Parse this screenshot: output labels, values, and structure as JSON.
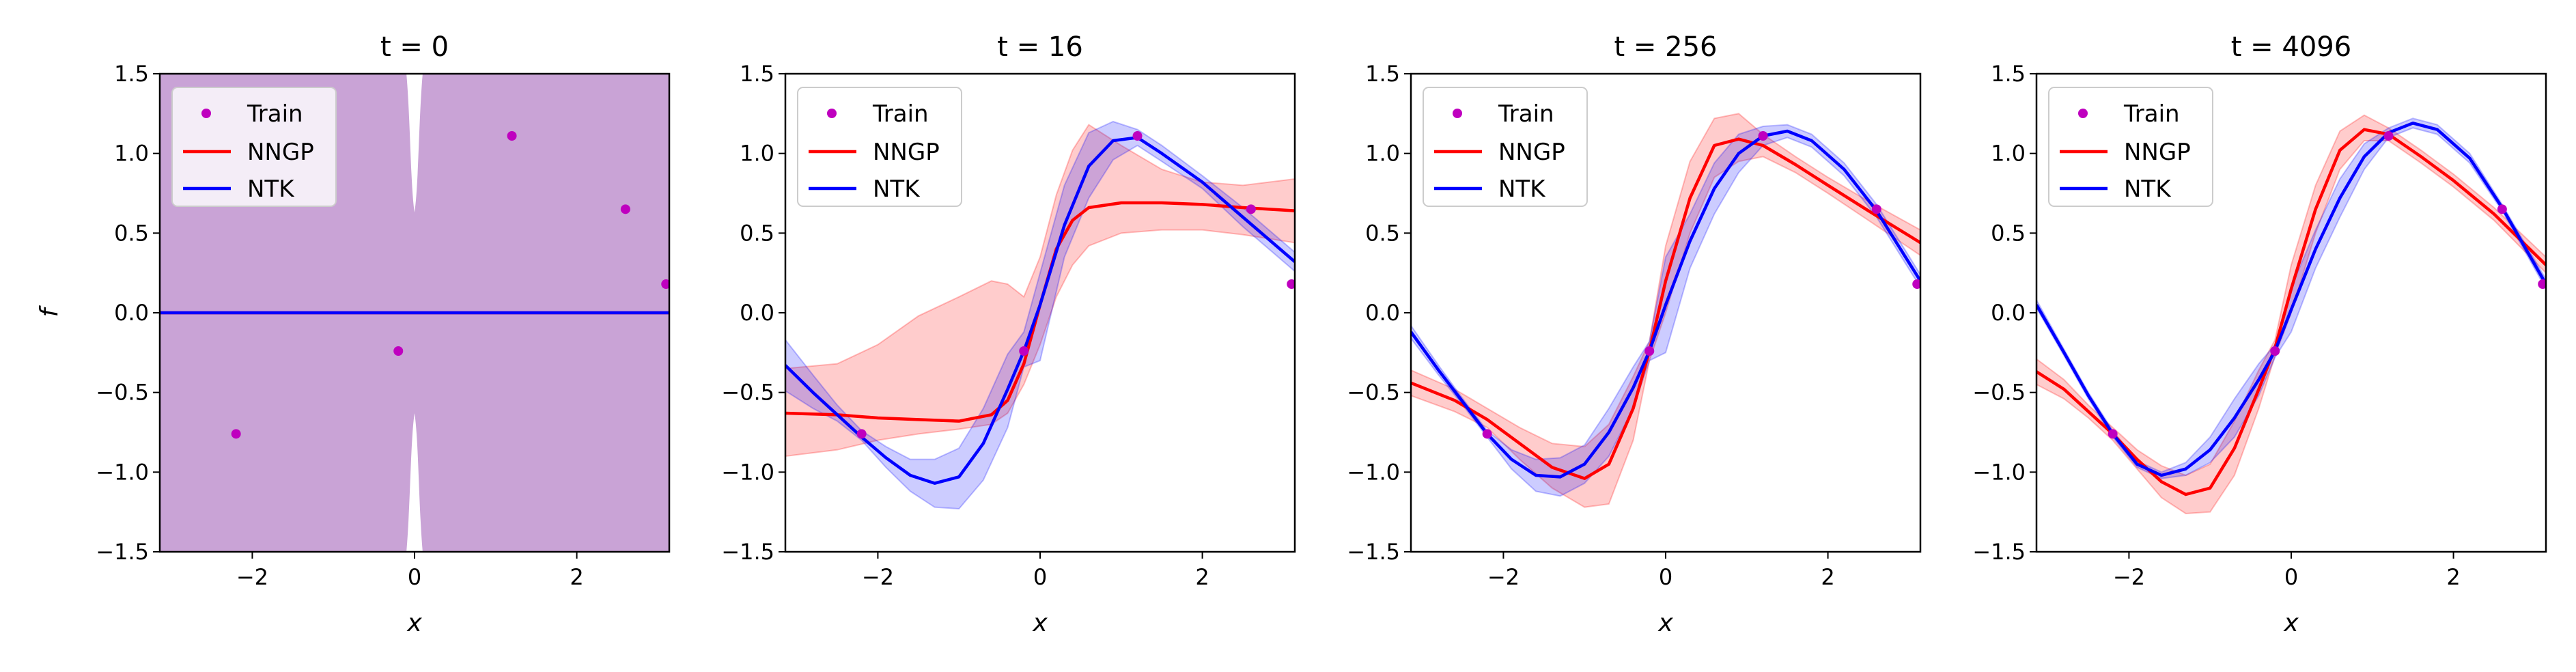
{
  "figure": {
    "ylabel": "f",
    "xlabel": "x"
  },
  "legend_labels": [
    "Train",
    "NNGP",
    "NTK"
  ],
  "colors": {
    "train": "#bf00bf",
    "nngp": "#ff0000",
    "ntk": "#0000ff",
    "nngp_band": "#ff0000",
    "ntk_band": "#0000ff",
    "overlap_band": "#c9a3d6"
  },
  "chart_data": [
    {
      "type": "line",
      "title": "t = 0",
      "xlabel": "x",
      "ylabel": "f",
      "xlim": [
        -3.14,
        3.14
      ],
      "ylim": [
        -1.5,
        1.5
      ],
      "xticks": [
        "−2",
        "0",
        "2"
      ],
      "yticks": [
        "−1.5",
        "−1.0",
        "−0.5",
        "0.0",
        "0.5",
        "1.0",
        "1.5"
      ],
      "legend": "top-left",
      "train": {
        "x": [
          -2.2,
          -0.2,
          1.2,
          2.6,
          3.1
        ],
        "y": [
          -0.76,
          -0.24,
          1.11,
          0.65,
          0.18
        ]
      },
      "series": [
        {
          "name": "NNGP",
          "x": [
            -3.14,
            3.14
          ],
          "y": [
            0,
            0
          ],
          "band": "full"
        },
        {
          "name": "NTK",
          "x": [
            -3.14,
            3.14
          ],
          "y": [
            0,
            0
          ],
          "band": "full"
        }
      ]
    },
    {
      "type": "line",
      "title": "t = 16",
      "xlabel": "x",
      "xlim": [
        -3.14,
        3.14
      ],
      "ylim": [
        -1.5,
        1.5
      ],
      "xticks": [
        "−2",
        "0",
        "2"
      ],
      "yticks": [
        "−1.5",
        "−1.0",
        "−0.5",
        "0.0",
        "0.5",
        "1.0",
        "1.5"
      ],
      "legend": "top-left",
      "train": {
        "x": [
          -2.2,
          -0.2,
          1.2,
          2.6,
          3.1
        ],
        "y": [
          -0.76,
          -0.24,
          1.11,
          0.65,
          0.18
        ]
      },
      "series": [
        {
          "name": "NNGP",
          "x": [
            -3.14,
            -2.5,
            -2.0,
            -1.5,
            -1.0,
            -0.6,
            -0.4,
            -0.2,
            0,
            0.2,
            0.4,
            0.6,
            1.0,
            1.5,
            2.0,
            2.5,
            3.14
          ],
          "y": [
            -0.63,
            -0.64,
            -0.66,
            -0.67,
            -0.68,
            -0.64,
            -0.55,
            -0.32,
            0.05,
            0.4,
            0.58,
            0.66,
            0.69,
            0.69,
            0.68,
            0.66,
            0.64
          ],
          "lower": [
            -0.9,
            -0.86,
            -0.8,
            -0.76,
            -0.73,
            -0.7,
            -0.63,
            -0.45,
            -0.2,
            0.1,
            0.3,
            0.42,
            0.5,
            0.52,
            0.52,
            0.49,
            0.44
          ],
          "upper": [
            -0.35,
            -0.32,
            -0.2,
            -0.02,
            0.1,
            0.2,
            0.18,
            0.1,
            0.35,
            0.74,
            1.02,
            1.18,
            1.05,
            0.9,
            0.82,
            0.8,
            0.84
          ]
        },
        {
          "name": "NTK",
          "x": [
            -3.14,
            -2.8,
            -2.5,
            -2.2,
            -1.9,
            -1.6,
            -1.3,
            -1.0,
            -0.7,
            -0.4,
            -0.2,
            0,
            0.3,
            0.6,
            0.9,
            1.2,
            1.5,
            2.0,
            2.5,
            3.14
          ],
          "y": [
            -0.33,
            -0.5,
            -0.64,
            -0.78,
            -0.91,
            -1.02,
            -1.07,
            -1.03,
            -0.82,
            -0.48,
            -0.24,
            0.05,
            0.55,
            0.92,
            1.08,
            1.1,
            1.0,
            0.82,
            0.6,
            0.32
          ],
          "lower": [
            -0.49,
            -0.6,
            -0.68,
            -0.8,
            -0.97,
            -1.12,
            -1.22,
            -1.23,
            -1.05,
            -0.72,
            -0.34,
            -0.3,
            0.35,
            0.72,
            0.96,
            1.05,
            0.95,
            0.78,
            0.54,
            0.26
          ],
          "upper": [
            -0.17,
            -0.39,
            -0.58,
            -0.74,
            -0.84,
            -0.92,
            -0.92,
            -0.85,
            -0.6,
            -0.26,
            -0.12,
            0.25,
            0.8,
            1.13,
            1.2,
            1.15,
            1.05,
            0.86,
            0.66,
            0.38
          ]
        }
      ]
    },
    {
      "type": "line",
      "title": "t = 256",
      "xlabel": "x",
      "xlim": [
        -3.14,
        3.14
      ],
      "ylim": [
        -1.5,
        1.5
      ],
      "xticks": [
        "−2",
        "0",
        "2"
      ],
      "yticks": [
        "−1.5",
        "−1.0",
        "−0.5",
        "0.0",
        "0.5",
        "1.0",
        "1.5"
      ],
      "legend": "top-left",
      "train": {
        "x": [
          -2.2,
          -0.2,
          1.2,
          2.6,
          3.1
        ],
        "y": [
          -0.76,
          -0.24,
          1.11,
          0.65,
          0.18
        ]
      },
      "series": [
        {
          "name": "NNGP",
          "x": [
            -3.14,
            -2.6,
            -2.2,
            -1.8,
            -1.4,
            -1.0,
            -0.7,
            -0.4,
            -0.2,
            0,
            0.3,
            0.6,
            0.9,
            1.2,
            1.6,
            2.0,
            2.5,
            3.14
          ],
          "y": [
            -0.44,
            -0.55,
            -0.67,
            -0.82,
            -0.97,
            -1.04,
            -0.95,
            -0.6,
            -0.24,
            0.2,
            0.72,
            1.05,
            1.09,
            1.05,
            0.93,
            0.8,
            0.64,
            0.44
          ],
          "lower": [
            -0.52,
            -0.62,
            -0.72,
            -0.92,
            -1.1,
            -1.22,
            -1.2,
            -0.8,
            -0.3,
            0.0,
            0.5,
            0.85,
            0.95,
            0.98,
            0.88,
            0.75,
            0.58,
            0.36
          ],
          "upper": [
            -0.36,
            -0.48,
            -0.6,
            -0.72,
            -0.82,
            -0.84,
            -0.7,
            -0.4,
            -0.18,
            0.42,
            0.95,
            1.22,
            1.25,
            1.12,
            0.98,
            0.85,
            0.7,
            0.52
          ]
        },
        {
          "name": "NTK",
          "x": [
            -3.14,
            -2.8,
            -2.5,
            -2.2,
            -1.9,
            -1.6,
            -1.3,
            -1.0,
            -0.7,
            -0.4,
            -0.2,
            0,
            0.3,
            0.6,
            0.9,
            1.2,
            1.5,
            1.8,
            2.2,
            2.6,
            3.14
          ],
          "y": [
            -0.12,
            -0.36,
            -0.56,
            -0.76,
            -0.92,
            -1.02,
            -1.03,
            -0.95,
            -0.75,
            -0.47,
            -0.24,
            0.05,
            0.45,
            0.78,
            1.0,
            1.11,
            1.14,
            1.08,
            0.9,
            0.64,
            0.2
          ],
          "lower": [
            -0.16,
            -0.39,
            -0.58,
            -0.78,
            -0.98,
            -1.12,
            -1.15,
            -1.07,
            -0.9,
            -0.6,
            -0.3,
            -0.25,
            0.28,
            0.62,
            0.88,
            1.05,
            1.1,
            1.04,
            0.86,
            0.6,
            0.16
          ],
          "upper": [
            -0.08,
            -0.33,
            -0.54,
            -0.74,
            -0.86,
            -0.92,
            -0.91,
            -0.83,
            -0.6,
            -0.34,
            -0.18,
            0.35,
            0.62,
            0.94,
            1.12,
            1.17,
            1.18,
            1.12,
            0.94,
            0.68,
            0.24
          ]
        }
      ]
    },
    {
      "type": "line",
      "title": "t = 4096",
      "xlabel": "x",
      "xlim": [
        -3.14,
        3.14
      ],
      "ylim": [
        -1.5,
        1.5
      ],
      "xticks": [
        "−2",
        "0",
        "2"
      ],
      "yticks": [
        "−1.5",
        "−1.0",
        "−0.5",
        "0.0",
        "0.5",
        "1.0",
        "1.5"
      ],
      "legend": "top-left",
      "train": {
        "x": [
          -2.2,
          -0.2,
          1.2,
          2.6,
          3.1
        ],
        "y": [
          -0.76,
          -0.24,
          1.11,
          0.65,
          0.18
        ]
      },
      "series": [
        {
          "name": "NNGP",
          "x": [
            -3.14,
            -2.8,
            -2.5,
            -2.2,
            -1.9,
            -1.6,
            -1.3,
            -1.0,
            -0.7,
            -0.4,
            -0.2,
            0,
            0.3,
            0.6,
            0.9,
            1.2,
            1.6,
            2.0,
            2.5,
            3.14
          ],
          "y": [
            -0.37,
            -0.48,
            -0.62,
            -0.76,
            -0.92,
            -1.06,
            -1.14,
            -1.1,
            -0.85,
            -0.48,
            -0.22,
            0.15,
            0.65,
            1.02,
            1.15,
            1.12,
            0.98,
            0.83,
            0.62,
            0.3
          ],
          "lower": [
            -0.45,
            -0.54,
            -0.66,
            -0.8,
            -0.98,
            -1.16,
            -1.26,
            -1.25,
            -1.02,
            -0.6,
            -0.27,
            0.0,
            0.5,
            0.9,
            1.08,
            1.08,
            0.94,
            0.79,
            0.58,
            0.25
          ],
          "upper": [
            -0.29,
            -0.42,
            -0.58,
            -0.72,
            -0.86,
            -0.96,
            -1.02,
            -0.95,
            -0.68,
            -0.36,
            -0.17,
            0.3,
            0.8,
            1.14,
            1.24,
            1.16,
            1.02,
            0.87,
            0.66,
            0.35
          ]
        },
        {
          "name": "NTK",
          "x": [
            -3.14,
            -2.8,
            -2.5,
            -2.2,
            -1.9,
            -1.6,
            -1.3,
            -1.0,
            -0.7,
            -0.4,
            -0.2,
            0,
            0.3,
            0.6,
            0.9,
            1.2,
            1.5,
            1.8,
            2.2,
            2.6,
            3.14
          ],
          "y": [
            0.05,
            -0.25,
            -0.52,
            -0.76,
            -0.95,
            -1.02,
            -0.98,
            -0.86,
            -0.66,
            -0.42,
            -0.24,
            0.02,
            0.4,
            0.72,
            0.98,
            1.13,
            1.19,
            1.15,
            0.97,
            0.66,
            0.18
          ],
          "lower": [
            0.03,
            -0.27,
            -0.54,
            -0.78,
            -0.97,
            -1.04,
            -1.02,
            -0.94,
            -0.78,
            -0.52,
            -0.28,
            -0.12,
            0.28,
            0.6,
            0.9,
            1.1,
            1.16,
            1.12,
            0.94,
            0.64,
            0.15
          ],
          "upper": [
            0.08,
            -0.23,
            -0.5,
            -0.74,
            -0.93,
            -1.0,
            -0.94,
            -0.78,
            -0.54,
            -0.32,
            -0.2,
            0.16,
            0.52,
            0.84,
            1.06,
            1.16,
            1.22,
            1.18,
            1.0,
            0.68,
            0.21
          ]
        }
      ]
    }
  ]
}
